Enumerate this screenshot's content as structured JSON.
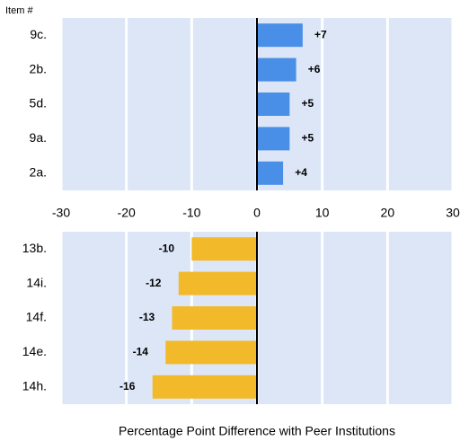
{
  "chart_data": [
    {
      "type": "barh",
      "y_label": "Item #",
      "categories": [
        "9c.",
        "2b.",
        "5d.",
        "9a.",
        "2a."
      ],
      "values": [
        7,
        6,
        5,
        5,
        4
      ],
      "value_labels": [
        "+7",
        "+6",
        "+5",
        "+5",
        "+4"
      ],
      "color": "#4a8fe7",
      "xlim": [
        -30,
        30
      ],
      "xticks": [
        -30,
        -20,
        -10,
        0,
        10,
        20,
        30
      ],
      "grid": true
    },
    {
      "type": "barh",
      "x_label": "Percentage Point Difference with Peer Institutions",
      "categories": [
        "13b.",
        "14i.",
        "14f.",
        "14e.",
        "14h."
      ],
      "values": [
        -10,
        -12,
        -13,
        -14,
        -16
      ],
      "color": "#f2b92a",
      "xlim": [
        -30,
        30
      ],
      "grid": true
    }
  ]
}
